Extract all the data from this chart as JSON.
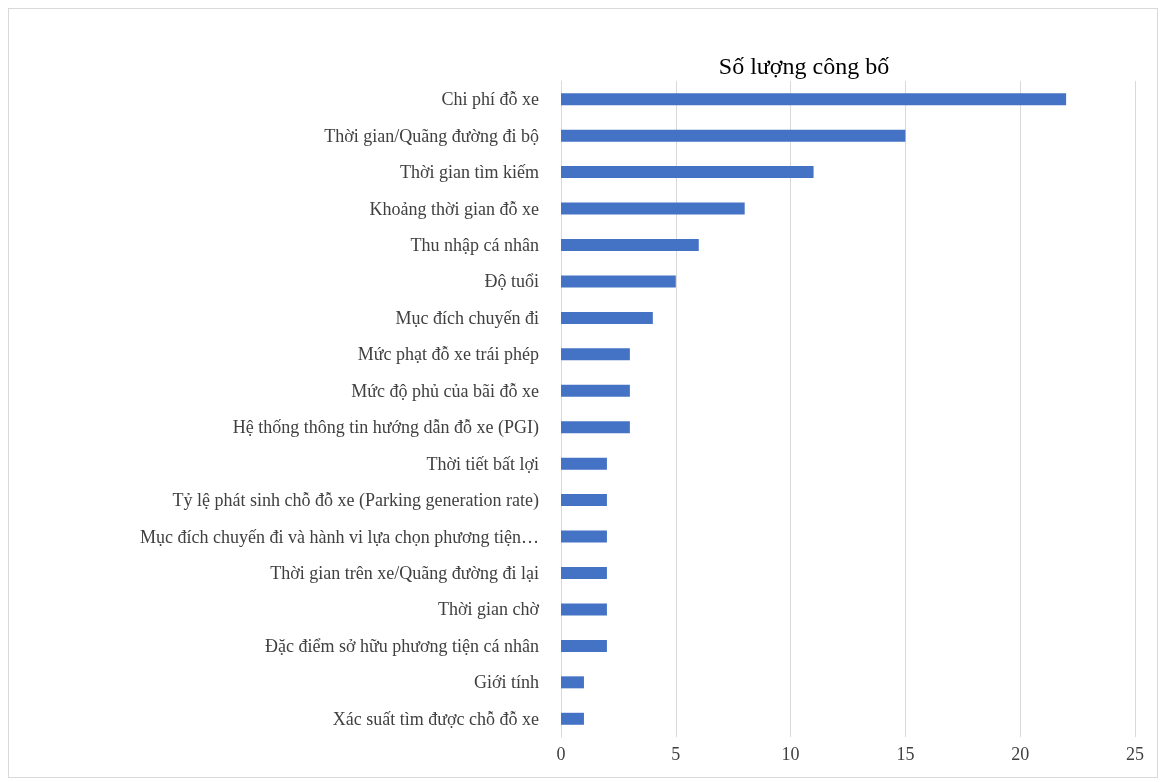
{
  "chart_data": {
    "type": "bar",
    "orientation": "horizontal",
    "title": "Số lượng công bố",
    "categories": [
      "Chi phí đỗ xe",
      "Thời gian/Quãng đường đi bộ",
      "Thời gian tìm kiếm",
      "Khoảng thời gian đỗ xe",
      "Thu nhập cá nhân",
      "Độ tuổi",
      "Mục đích chuyến đi",
      "Mức phạt đỗ xe trái phép",
      "Mức độ phủ của bãi đỗ xe",
      "Hệ thống thông tin hướng dẫn đỗ xe (PGI)",
      "Thời tiết bất lợi",
      "Tỷ lệ phát sinh chỗ đỗ xe (Parking generation rate)",
      "Mục đích chuyến đi và hành vi lựa chọn phương tiện…",
      "Thời gian trên xe/Quãng đường đi lại",
      "Thời gian chờ",
      "Đặc điểm sở hữu phương tiện cá nhân",
      "Giới tính",
      "Xác suất tìm được chỗ đỗ xe"
    ],
    "values": [
      22,
      15,
      11,
      8,
      6,
      5,
      4,
      3,
      3,
      3,
      2,
      2,
      2,
      2,
      2,
      2,
      1,
      1
    ],
    "color": "#4472c4",
    "xlim": [
      0,
      25
    ],
    "xticks": [
      0,
      5,
      10,
      15,
      20,
      25
    ],
    "grid": "x"
  }
}
